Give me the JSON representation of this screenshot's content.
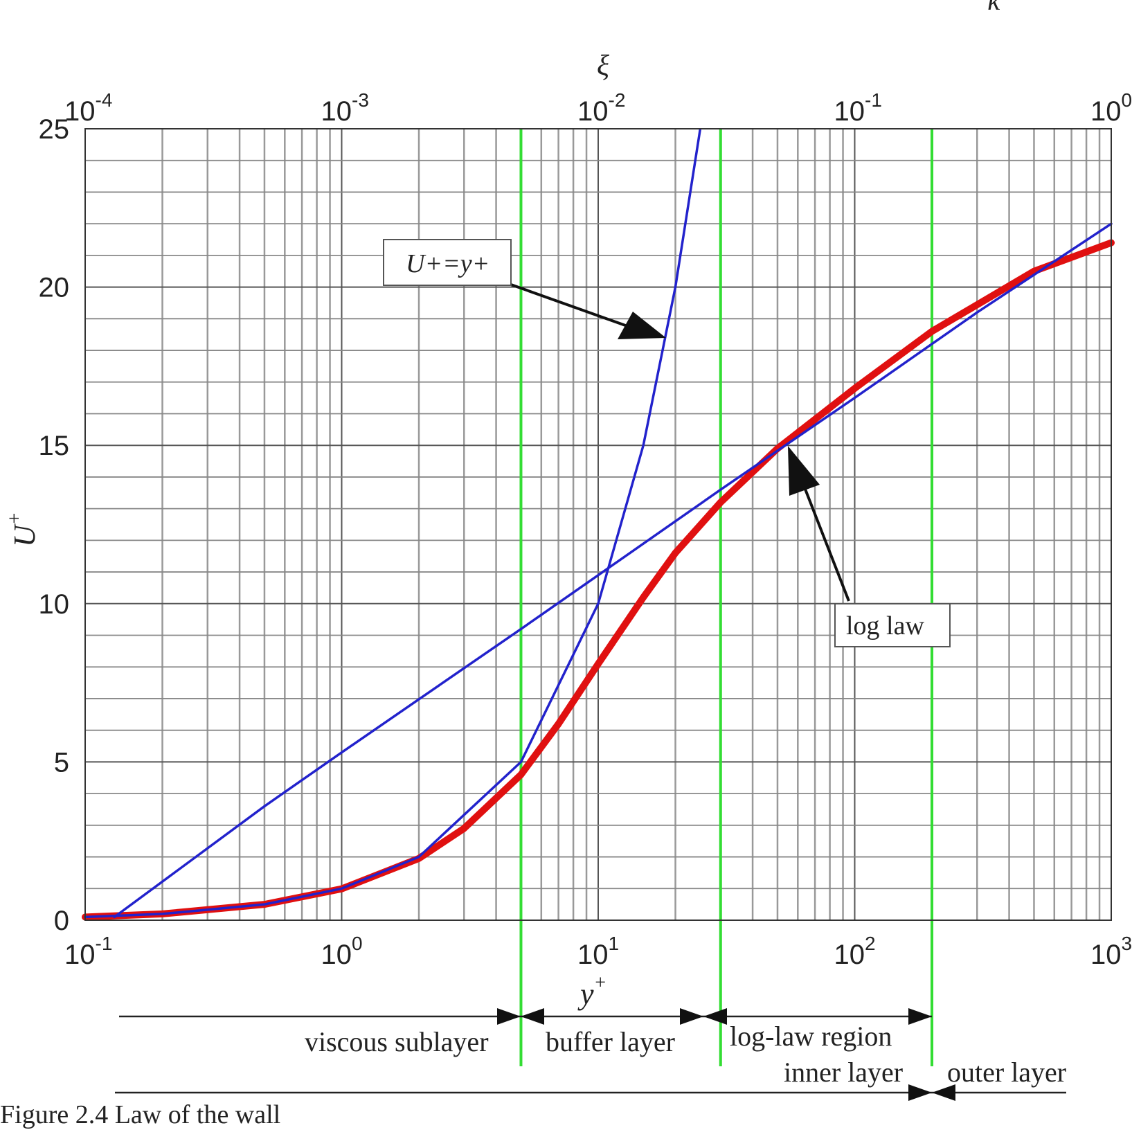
{
  "chart_data": {
    "type": "line",
    "title": "",
    "top_axis_label": "ξ",
    "top_corner_mark": "κ",
    "xlabel": "y",
    "xlabel_sup": "+",
    "ylabel": "U",
    "ylabel_sup": "+",
    "xscale": "log",
    "xlim": [
      0.1,
      1000
    ],
    "ylim": [
      0,
      25
    ],
    "grid": true,
    "x_ticks": [
      {
        "base": "10",
        "exp": "-1",
        "value": 0.1
      },
      {
        "base": "10",
        "exp": "0",
        "value": 1
      },
      {
        "base": "10",
        "exp": "1",
        "value": 10
      },
      {
        "base": "10",
        "exp": "2",
        "value": 100
      },
      {
        "base": "10",
        "exp": "3",
        "value": 1000
      }
    ],
    "top_ticks": [
      {
        "base": "10",
        "exp": "-4"
      },
      {
        "base": "10",
        "exp": "-3"
      },
      {
        "base": "10",
        "exp": "-2"
      },
      {
        "base": "10",
        "exp": "-1"
      },
      {
        "base": "10",
        "exp": "0"
      }
    ],
    "y_ticks": [
      "0",
      "5",
      "10",
      "15",
      "20",
      "25"
    ],
    "series": [
      {
        "color": "#2222cc",
        "x": [
          0.1,
          0.2,
          0.5,
          1,
          2,
          5,
          10,
          15,
          20,
          25
        ],
        "y": [
          0.1,
          0.2,
          0.5,
          1,
          2,
          5,
          10,
          15,
          20,
          25
        ]
      },
      {
        "color": "#2222cc",
        "x": [
          0.13,
          0.5,
          1,
          5,
          10,
          30,
          100,
          300,
          1000
        ],
        "y": [
          0.1,
          3.6,
          5.3,
          9.2,
          10.9,
          13.6,
          16.5,
          19.2,
          22.0
        ]
      },
      {
        "color": "#e01010",
        "x": [
          0.1,
          0.2,
          0.5,
          1,
          2,
          3,
          5,
          7,
          10,
          15,
          20,
          30,
          50,
          100,
          200,
          500,
          1000
        ],
        "y": [
          0.1,
          0.2,
          0.5,
          0.99,
          1.95,
          2.9,
          4.6,
          6.2,
          8.1,
          10.2,
          11.6,
          13.2,
          14.9,
          16.8,
          18.6,
          20.5,
          21.4
        ]
      }
    ],
    "region_boundaries": [
      5,
      30,
      200
    ],
    "annotations": [
      {
        "text": "U+=y+",
        "points_to_x": 18,
        "points_to_y": 18.5
      },
      {
        "text": "log law",
        "points_to_x": 55,
        "points_to_y": 15
      }
    ],
    "regions": [
      {
        "text": "viscous sublayer"
      },
      {
        "text": "buffer layer"
      },
      {
        "text": "log-law region"
      },
      {
        "text": "inner layer"
      },
      {
        "text": "outer layer"
      }
    ]
  },
  "caption": "Figure 2.4 Law of the wall"
}
